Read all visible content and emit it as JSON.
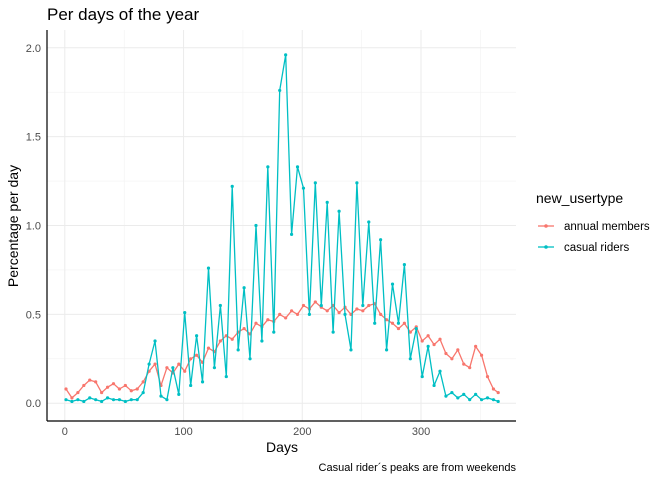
{
  "chart_data": {
    "type": "line",
    "title": "Per days of the year",
    "xlabel": "Days",
    "ylabel": "Percentage per day",
    "caption": "Casual rider´s peaks are from weekends",
    "xlim": [
      -15,
      380
    ],
    "ylim": [
      -0.1,
      2.1
    ],
    "x_ticks": [
      0,
      100,
      200,
      300
    ],
    "y_ticks": [
      0.0,
      0.5,
      1.0,
      1.5,
      2.0
    ],
    "y_tick_labels": [
      "0.0",
      "0.5",
      "1.0",
      "1.5",
      "2.0"
    ],
    "grid": true,
    "legend": {
      "title": "new_usertype",
      "position": "right"
    },
    "series": [
      {
        "name": "annual members",
        "color": "#F8766D",
        "x": [
          1,
          6,
          11,
          16,
          21,
          26,
          31,
          36,
          41,
          46,
          51,
          56,
          61,
          66,
          71,
          76,
          81,
          86,
          91,
          96,
          101,
          106,
          111,
          116,
          121,
          126,
          131,
          136,
          141,
          146,
          151,
          156,
          161,
          166,
          171,
          176,
          181,
          186,
          191,
          196,
          201,
          206,
          211,
          216,
          221,
          226,
          231,
          236,
          241,
          246,
          251,
          256,
          261,
          266,
          271,
          276,
          281,
          286,
          291,
          296,
          301,
          306,
          311,
          316,
          321,
          326,
          331,
          336,
          341,
          346,
          351,
          356,
          361,
          365
        ],
        "y": [
          0.08,
          0.03,
          0.06,
          0.1,
          0.13,
          0.12,
          0.06,
          0.09,
          0.11,
          0.08,
          0.1,
          0.07,
          0.08,
          0.12,
          0.18,
          0.22,
          0.1,
          0.2,
          0.17,
          0.22,
          0.18,
          0.25,
          0.27,
          0.23,
          0.31,
          0.29,
          0.35,
          0.38,
          0.36,
          0.4,
          0.42,
          0.39,
          0.45,
          0.43,
          0.47,
          0.46,
          0.5,
          0.48,
          0.52,
          0.5,
          0.55,
          0.53,
          0.57,
          0.54,
          0.52,
          0.55,
          0.51,
          0.54,
          0.5,
          0.53,
          0.52,
          0.55,
          0.56,
          0.5,
          0.47,
          0.45,
          0.42,
          0.45,
          0.4,
          0.43,
          0.35,
          0.38,
          0.33,
          0.36,
          0.28,
          0.25,
          0.3,
          0.22,
          0.2,
          0.32,
          0.27,
          0.15,
          0.08,
          0.06
        ]
      },
      {
        "name": "casual riders",
        "color": "#00BFC4",
        "x": [
          1,
          6,
          11,
          16,
          21,
          26,
          31,
          36,
          41,
          46,
          51,
          56,
          61,
          66,
          71,
          76,
          81,
          86,
          91,
          96,
          101,
          106,
          111,
          116,
          121,
          126,
          131,
          136,
          141,
          146,
          151,
          156,
          161,
          166,
          171,
          176,
          181,
          186,
          191,
          196,
          201,
          206,
          211,
          216,
          221,
          226,
          231,
          236,
          241,
          246,
          251,
          256,
          261,
          266,
          271,
          276,
          281,
          286,
          291,
          296,
          301,
          306,
          311,
          316,
          321,
          326,
          331,
          336,
          341,
          346,
          351,
          356,
          361,
          365
        ],
        "y": [
          0.02,
          0.01,
          0.02,
          0.01,
          0.03,
          0.02,
          0.01,
          0.03,
          0.02,
          0.02,
          0.01,
          0.02,
          0.02,
          0.06,
          0.22,
          0.35,
          0.04,
          0.02,
          0.2,
          0.05,
          0.51,
          0.1,
          0.38,
          0.12,
          0.76,
          0.2,
          0.55,
          0.15,
          1.22,
          0.3,
          0.65,
          0.25,
          1.0,
          0.35,
          1.33,
          0.4,
          1.76,
          1.96,
          0.95,
          1.33,
          1.21,
          0.5,
          1.24,
          0.55,
          1.13,
          0.4,
          1.08,
          0.5,
          0.3,
          1.24,
          0.55,
          1.02,
          0.45,
          0.92,
          0.3,
          0.67,
          0.45,
          0.78,
          0.25,
          0.42,
          0.15,
          0.32,
          0.1,
          0.18,
          0.04,
          0.06,
          0.03,
          0.05,
          0.02,
          0.05,
          0.02,
          0.03,
          0.02,
          0.01
        ]
      }
    ]
  }
}
